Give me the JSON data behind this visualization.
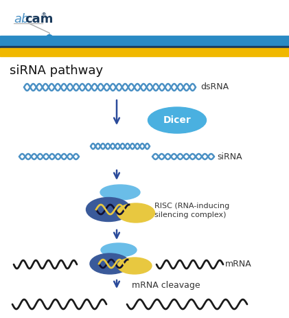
{
  "bg_color": "#ffffff",
  "header_blue": "#2a8ac4",
  "header_dark": "#1a3a5c",
  "header_yellow": "#f0b800",
  "wave_blue": "#4a90c4",
  "wave_black": "#1a1a1a",
  "dicer_color": "#4ab0e0",
  "risc_cap_color": "#6abde8",
  "risc_dark": "#3a5a9a",
  "risc_yellow": "#e8c840",
  "risc_helix_dark": "#111133",
  "arrow_color": "#2a4a9a",
  "label_color": "#333333",
  "top_title": "siRNA pathway",
  "dsrna_label": "dsRNA",
  "dicer_label": "Dicer",
  "sirna_label": "siRNA",
  "risc_label_line1": "RISC (RNA-inducing",
  "risc_label_line2": "silencing complex)",
  "mrna_label": "mRNA",
  "cleavage_label": "mRNA cleavage",
  "ab_color": "#4a90c4",
  "cam_color": "#1a3a5c"
}
